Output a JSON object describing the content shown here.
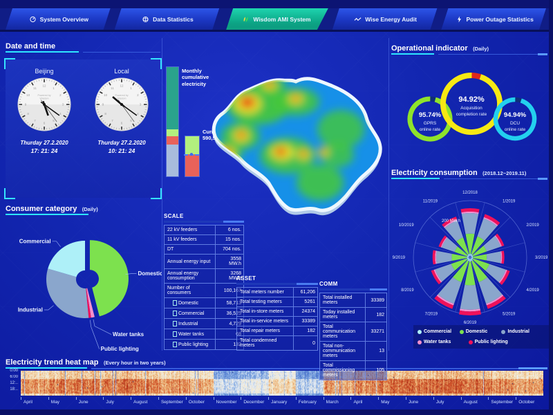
{
  "palette": {
    "accent_cyan": "#2ee6ff",
    "active_tab_green": "#12b894",
    "ring_green": "#8fe32b",
    "ring_yellow": "#f7e913",
    "ring_cyan": "#23d0ee",
    "alert_red": "#e02818",
    "map_base_blue": "#1690e8"
  },
  "nav": {
    "tabs": [
      {
        "label": "System Overview",
        "icon": "overview-gauge-icon",
        "active": false
      },
      {
        "label": "Data Statistics",
        "icon": "data-globe-icon",
        "active": false
      },
      {
        "label": "Wisdom AMI System",
        "icon": "wisdom-leaf-icon",
        "active": true
      },
      {
        "label": "Wise Energy Audit",
        "icon": "energy-trend-icon",
        "active": false
      },
      {
        "label": "Power Outage Statistics",
        "icon": "lightning-icon",
        "active": false
      }
    ]
  },
  "datetime": {
    "title": "Date and time",
    "clocks": [
      {
        "city": "Beijing",
        "brand_line1": "Powered by",
        "brand_line2": "Wisdom",
        "date": "Thurday 27.2.2020",
        "time": "17: 21: 24",
        "hour_angle": 160.5,
        "minute_angle": 126,
        "second_angle": 144
      },
      {
        "city": "Local",
        "brand_line1": "Powered by",
        "brand_line2": "Wisdom",
        "date": "Thurday 27.2.2020",
        "time": "10: 21: 24",
        "hour_angle": 310.5,
        "minute_angle": 126,
        "second_angle": 144
      }
    ]
  },
  "consumer": {
    "title": "Consumer category",
    "subtitle": "(Daily)"
  },
  "bars": {
    "monthly_label": "Monthly cumulative electricity",
    "current_label": "Current load",
    "current_value": "590,569 kW",
    "monthly_segments": [
      {
        "color": "#2aa38c",
        "pct": 57
      },
      {
        "color": "#b2f07e",
        "pct": 6
      },
      {
        "color": "#e8625a",
        "pct": 8
      },
      {
        "color": "#a8bcdc",
        "pct": 29
      }
    ],
    "current_segments": [
      {
        "color": "#b2f07e",
        "pct": 45
      },
      {
        "color": "#e8625a",
        "pct": 55
      }
    ],
    "current_marker_pct": 47
  },
  "scale_table": {
    "title": "SCALE",
    "rows": [
      {
        "label": "22 kV feeders",
        "value": "6 nos."
      },
      {
        "label": "11 kV feeders",
        "value": "15 nos."
      },
      {
        "label": "DT",
        "value": "704 nos."
      },
      {
        "label": "Annual energy input",
        "value": "3558 MW.h"
      },
      {
        "label": "Annual energy consumption",
        "value": "3268 MW.h"
      },
      {
        "label": "Number of consumers",
        "value": "100,167"
      },
      {
        "label": "Domestic",
        "value": "58,713",
        "indent": true
      },
      {
        "label": "Commercial",
        "value": "36,525",
        "indent": true
      },
      {
        "label": "Industrial",
        "value": "4,729",
        "indent": true
      },
      {
        "label": "Water tanks",
        "value": "68",
        "indent": true
      },
      {
        "label": "Public lighting",
        "value": "132",
        "indent": true
      }
    ]
  },
  "asset_table": {
    "title": "ASSET",
    "rows": [
      {
        "label": "Total meters number",
        "value": "61,206"
      },
      {
        "label": "Total testing meters",
        "value": "5261"
      },
      {
        "label": "Total in-store meters",
        "value": "24374"
      },
      {
        "label": "Total in-service meters",
        "value": "33389"
      },
      {
        "label": "Total repair meters",
        "value": "182"
      },
      {
        "label": "Total condemned meters",
        "value": "0"
      }
    ]
  },
  "comm_table": {
    "title": "COMM",
    "rows": [
      {
        "label": "Total installed meters",
        "value": "33389"
      },
      {
        "label": "Today installed meters",
        "value": "182"
      },
      {
        "label": "Total communication meters",
        "value": "33271"
      },
      {
        "label": "Total non-communication meters",
        "value": "13"
      },
      {
        "label": "Total commissioning meters",
        "value": "105"
      }
    ]
  },
  "operational": {
    "title": "Operational indicator",
    "subtitle": "(Daily)"
  },
  "consumption": {
    "title": "Electricity consumption",
    "subtitle": "(2018.12~2019.11)",
    "radial_label": "200 MW.h"
  },
  "heatmap": {
    "title": "Electricity trend heat map",
    "subtitle": "(Every hour in two years)"
  },
  "chart_data": [
    {
      "id": "consumer_pie",
      "type": "pie",
      "title": "Consumer category (Daily)",
      "labels": [
        "Domestic",
        "Water tanks",
        "Public lighting",
        "Industrial",
        "Commercial"
      ],
      "values": [
        46,
        1.5,
        1,
        31,
        20.5
      ],
      "colors": [
        "#7de14e",
        "#f590cd",
        "#f0115a",
        "#8aa6cc",
        "#aef0f8"
      ],
      "unit": "percent",
      "explode_index": 0
    },
    {
      "id": "operational_gauges",
      "type": "donut-gauge",
      "items": [
        {
          "label": "GPRS online rate",
          "display": "95.74%",
          "value": 95.74,
          "color": "#8fe32b",
          "gap_color": "#0e2f7a"
        },
        {
          "label": "Acquisition completion rate",
          "display": "94.92%",
          "value": 94.92,
          "color": "#f7e913",
          "gap_color": "#e02818"
        },
        {
          "label": "DCU online rate",
          "display": "94.94%",
          "value": 94.94,
          "color": "#23d0ee",
          "gap_color": "#0e2f7a"
        }
      ]
    },
    {
      "id": "consumption_rose",
      "type": "polar-rose",
      "title": "Electricity consumption (2018.12~2019.11)",
      "categories": [
        "12/2018",
        "1/2019",
        "2/2019",
        "3/2019",
        "4/2019",
        "5/2019",
        "6/2019",
        "7/2019",
        "8/2019",
        "9/2019",
        "10/2019",
        "11/2019"
      ],
      "rmax": 320,
      "radial_tick": "200 MW.h",
      "series": [
        {
          "name": "Commercial",
          "color": "#aef0f8",
          "values": [
            13,
            12,
            10,
            9,
            11,
            15,
            16,
            15,
            11,
            10,
            9,
            12
          ]
        },
        {
          "name": "Domestic",
          "color": "#7de14e",
          "values": [
            113,
            105,
            82,
            78,
            97,
            126,
            134,
            126,
            94,
            86,
            76,
            99
          ]
        },
        {
          "name": "Industrial",
          "color": "#8aa6cc",
          "values": [
            116,
            108,
            84,
            80,
            99,
            129,
            138,
            129,
            97,
            88,
            77,
            101
          ]
        },
        {
          "name": "Water tanks",
          "color": "#f590cd",
          "values": [
            8,
            7,
            6,
            6,
            7,
            9,
            10,
            9,
            7,
            6,
            5,
            7
          ]
        },
        {
          "name": "Public lighting",
          "color": "#f0115a",
          "values": [
            19,
            18,
            14,
            13,
            16,
            21,
            22,
            21,
            16,
            14,
            13,
            16
          ]
        }
      ],
      "legend": [
        {
          "label": "Commercial",
          "color": "#aef0f8"
        },
        {
          "label": "Domestic",
          "color": "#7de14e"
        },
        {
          "label": "Industrial",
          "color": "#8aa6cc"
        },
        {
          "label": "Water tanks",
          "color": "#f590cd"
        },
        {
          "label": "Public lighting",
          "color": "#f0115a"
        }
      ]
    },
    {
      "id": "trend_heatmap",
      "type": "heatmap",
      "title": "Electricity trend heat map (Every hour in two years)",
      "x_labels": [
        "April",
        "May",
        "June",
        "July",
        "August",
        "September",
        "October",
        "November",
        "December",
        "January",
        "February",
        "March",
        "April",
        "May",
        "June",
        "July",
        "August",
        "September",
        "October"
      ],
      "y_labels": [
        "0:00",
        "6:00",
        "12:..",
        "18:.."
      ],
      "month_warmth": [
        0.68,
        0.72,
        0.74,
        0.76,
        0.74,
        0.7,
        0.66,
        0.35,
        0.4,
        0.55,
        0.32,
        0.68,
        0.72,
        0.74,
        0.76,
        0.78,
        0.76,
        0.72,
        0.66
      ]
    }
  ]
}
